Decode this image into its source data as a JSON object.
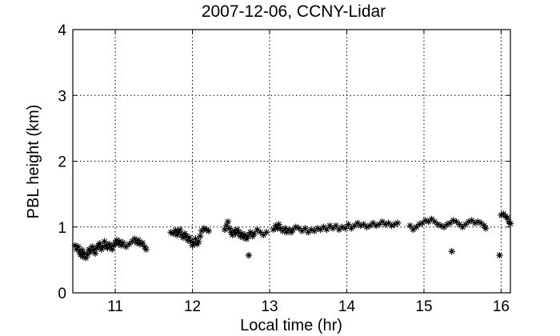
{
  "chart_data": {
    "type": "scatter",
    "title": "2007-12-06, CCNY-Lidar",
    "xlabel": "Local time (hr)",
    "ylabel": "PBL height (km)",
    "xlim": [
      10.45,
      16.12
    ],
    "ylim": [
      0,
      4
    ],
    "xticks": [
      "11",
      "12",
      "13",
      "14",
      "15",
      "16"
    ],
    "yticks": [
      "0",
      "1",
      "2",
      "3",
      "4"
    ],
    "grid": true,
    "marker": "asterisk",
    "marker_color": "#000000",
    "series": [
      {
        "points": [
          [
            10.48,
            0.72
          ],
          [
            10.5,
            0.66
          ],
          [
            10.52,
            0.7
          ],
          [
            10.54,
            0.62
          ],
          [
            10.55,
            0.58
          ],
          [
            10.57,
            0.65
          ],
          [
            10.58,
            0.55
          ],
          [
            10.6,
            0.6
          ],
          [
            10.62,
            0.53
          ],
          [
            10.64,
            0.58
          ],
          [
            10.66,
            0.66
          ],
          [
            10.67,
            0.62
          ],
          [
            10.7,
            0.7
          ],
          [
            10.72,
            0.65
          ],
          [
            10.74,
            0.6
          ],
          [
            10.76,
            0.68
          ],
          [
            10.78,
            0.72
          ],
          [
            10.8,
            0.75
          ],
          [
            10.82,
            0.66
          ],
          [
            10.84,
            0.7
          ],
          [
            10.86,
            0.78
          ],
          [
            10.88,
            0.72
          ],
          [
            10.9,
            0.68
          ],
          [
            10.92,
            0.74
          ],
          [
            10.94,
            0.7
          ],
          [
            10.96,
            0.66
          ],
          [
            10.98,
            0.72
          ],
          [
            11.0,
            0.76
          ],
          [
            11.02,
            0.8
          ],
          [
            11.04,
            0.74
          ],
          [
            11.06,
            0.78
          ],
          [
            11.08,
            0.72
          ],
          [
            11.1,
            0.76
          ],
          [
            11.14,
            0.7
          ],
          [
            11.18,
            0.74
          ],
          [
            11.22,
            0.78
          ],
          [
            11.25,
            0.82
          ],
          [
            11.28,
            0.76
          ],
          [
            11.3,
            0.8
          ],
          [
            11.32,
            0.74
          ],
          [
            11.35,
            0.76
          ],
          [
            11.38,
            0.7
          ],
          [
            11.4,
            0.66
          ],
          [
            11.72,
            0.92
          ],
          [
            11.75,
            0.9
          ],
          [
            11.78,
            0.95
          ],
          [
            11.8,
            0.88
          ],
          [
            11.82,
            0.92
          ],
          [
            11.84,
            0.96
          ],
          [
            11.86,
            0.88
          ],
          [
            11.88,
            0.84
          ],
          [
            11.9,
            0.9
          ],
          [
            11.92,
            0.86
          ],
          [
            11.94,
            0.8
          ],
          [
            11.96,
            0.84
          ],
          [
            11.98,
            0.78
          ],
          [
            12.0,
            0.72
          ],
          [
            12.02,
            0.76
          ],
          [
            12.04,
            0.82
          ],
          [
            12.06,
            0.74
          ],
          [
            12.08,
            0.78
          ],
          [
            12.1,
            0.86
          ],
          [
            12.12,
            0.94
          ],
          [
            12.15,
            0.98
          ],
          [
            12.18,
            0.96
          ],
          [
            12.21,
            0.94
          ],
          [
            12.42,
            0.96
          ],
          [
            12.44,
            1.02
          ],
          [
            12.46,
            1.08
          ],
          [
            12.48,
            0.98
          ],
          [
            12.5,
            0.92
          ],
          [
            12.52,
            0.88
          ],
          [
            12.54,
            0.94
          ],
          [
            12.56,
            0.9
          ],
          [
            12.58,
            0.96
          ],
          [
            12.6,
            0.92
          ],
          [
            12.62,
            0.86
          ],
          [
            12.64,
            0.9
          ],
          [
            12.66,
            0.84
          ],
          [
            12.68,
            0.88
          ],
          [
            12.7,
            0.82
          ],
          [
            12.72,
            0.86
          ],
          [
            12.73,
            0.57
          ],
          [
            12.75,
            0.92
          ],
          [
            12.78,
            0.86
          ],
          [
            12.8,
            0.9
          ],
          [
            12.84,
            0.96
          ],
          [
            12.88,
            0.92
          ],
          [
            12.92,
            0.88
          ],
          [
            12.96,
            0.92
          ],
          [
            13.05,
            0.96
          ],
          [
            13.08,
            1.02
          ],
          [
            13.1,
            0.98
          ],
          [
            13.12,
            1.04
          ],
          [
            13.14,
            0.98
          ],
          [
            13.17,
            0.94
          ],
          [
            13.2,
            0.98
          ],
          [
            13.22,
            0.92
          ],
          [
            13.25,
            0.96
          ],
          [
            13.28,
            0.92
          ],
          [
            13.3,
            0.96
          ],
          [
            13.34,
            1.0
          ],
          [
            13.38,
            0.98
          ],
          [
            13.42,
            0.94
          ],
          [
            13.46,
            0.98
          ],
          [
            13.5,
            0.92
          ],
          [
            13.54,
            0.96
          ],
          [
            13.58,
            0.94
          ],
          [
            13.62,
            0.98
          ],
          [
            13.66,
            0.96
          ],
          [
            13.7,
            1.0
          ],
          [
            13.74,
            0.96
          ],
          [
            13.78,
            1.02
          ],
          [
            13.82,
            0.98
          ],
          [
            13.86,
            1.02
          ],
          [
            13.9,
            0.96
          ],
          [
            13.94,
            1.0
          ],
          [
            13.98,
            0.98
          ],
          [
            14.02,
            1.04
          ],
          [
            14.06,
            0.98
          ],
          [
            14.1,
            1.02
          ],
          [
            14.14,
            1.06
          ],
          [
            14.18,
            1.02
          ],
          [
            14.22,
            1.04
          ],
          [
            14.26,
            1.0
          ],
          [
            14.3,
            1.02
          ],
          [
            14.34,
            1.06
          ],
          [
            14.38,
            1.02
          ],
          [
            14.42,
            1.04
          ],
          [
            14.46,
            1.08
          ],
          [
            14.5,
            1.04
          ],
          [
            14.54,
            1.06
          ],
          [
            14.58,
            1.02
          ],
          [
            14.62,
            1.04
          ],
          [
            14.66,
            1.06
          ],
          [
            14.82,
            1.02
          ],
          [
            14.86,
            0.96
          ],
          [
            14.9,
            1.0
          ],
          [
            14.94,
            1.04
          ],
          [
            14.98,
            1.06
          ],
          [
            15.02,
            1.1
          ],
          [
            15.06,
            1.08
          ],
          [
            15.1,
            1.12
          ],
          [
            15.14,
            1.08
          ],
          [
            15.18,
            1.04
          ],
          [
            15.22,
            1.02
          ],
          [
            15.26,
            1.0
          ],
          [
            15.3,
            1.04
          ],
          [
            15.34,
            1.06
          ],
          [
            15.36,
            0.63
          ],
          [
            15.38,
            1.1
          ],
          [
            15.42,
            1.08
          ],
          [
            15.46,
            1.04
          ],
          [
            15.5,
            1.0
          ],
          [
            15.54,
            1.04
          ],
          [
            15.58,
            1.08
          ],
          [
            15.62,
            1.1
          ],
          [
            15.66,
            1.06
          ],
          [
            15.7,
            1.08
          ],
          [
            15.74,
            1.06
          ],
          [
            15.78,
            1.02
          ],
          [
            15.8,
            0.98
          ],
          [
            15.98,
            0.57
          ],
          [
            16.0,
            1.18
          ],
          [
            16.03,
            1.2
          ],
          [
            16.06,
            1.16
          ],
          [
            16.08,
            1.14
          ],
          [
            16.1,
            1.08
          ],
          [
            16.12,
            1.05
          ]
        ]
      }
    ]
  }
}
